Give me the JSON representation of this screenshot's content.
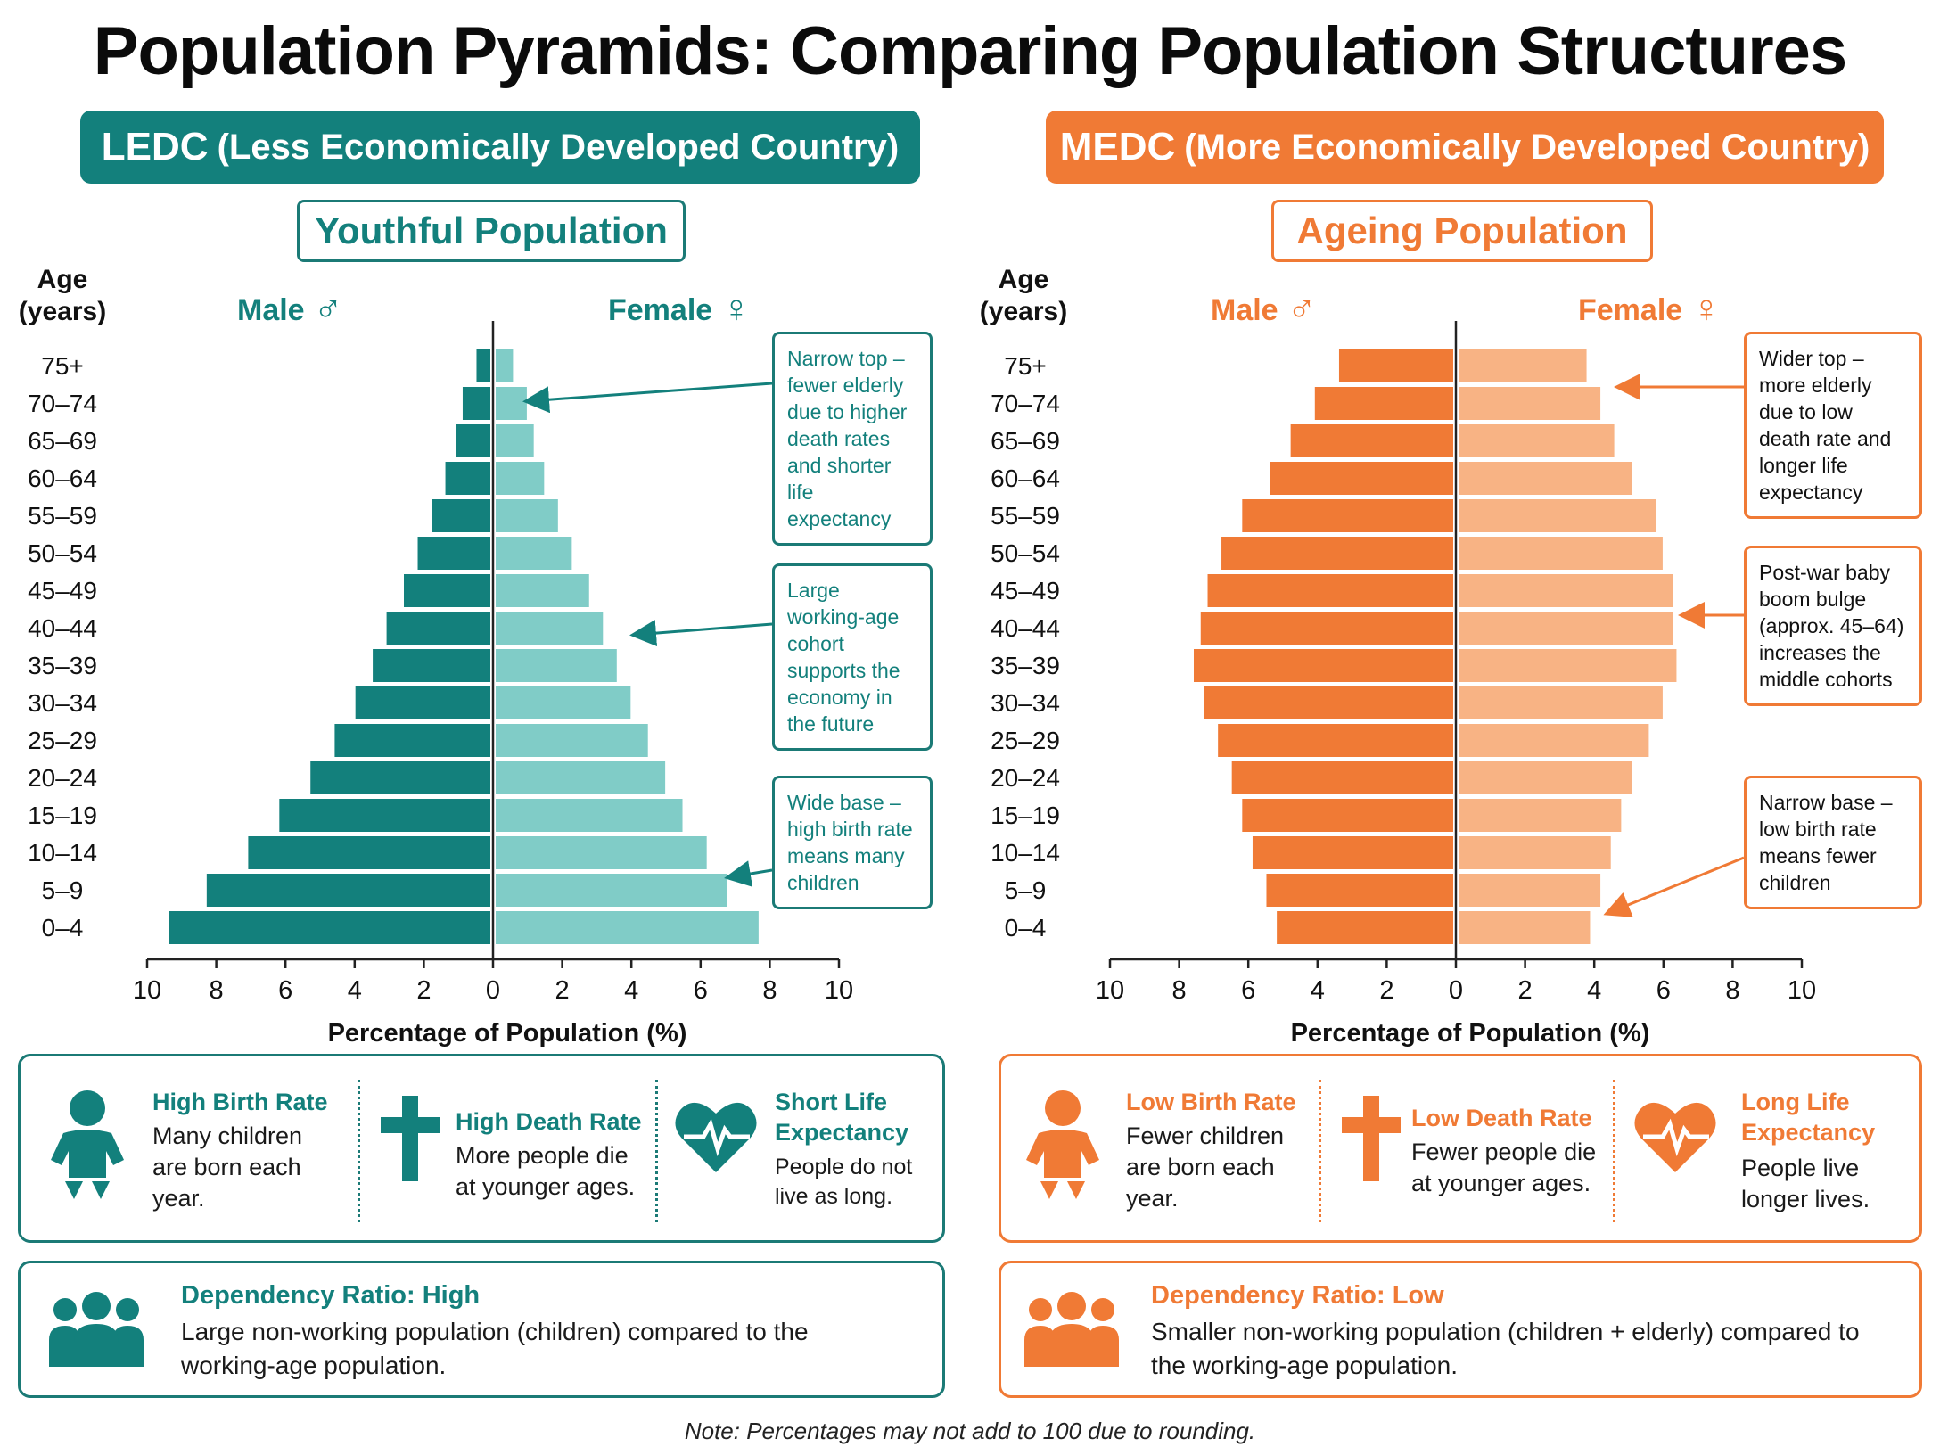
{
  "title": "Population Pyramids: Comparing Population Structures",
  "colors": {
    "teal_dark": "#13807c",
    "teal_light": "#80ccc7",
    "orange_dark": "#f07a35",
    "orange_light": "#f8b384",
    "teal_border": "#1b7a76",
    "orange_border": "#f07a35"
  },
  "ledc": {
    "banner_main": "LEDC",
    "banner_sub": "(Less Economically Developed Country)",
    "subtitle": "Youthful Population",
    "male_label": "Male",
    "female_label": "Female",
    "male_icon": "♂",
    "female_icon": "♀",
    "annotations": [
      {
        "text": "Narrow top – fewer elderly due to higher death rates and shorter life expectancy"
      },
      {
        "text": "Large working-age cohort supports the economy in the future"
      },
      {
        "text": "Wide base – high birth rate means many children"
      }
    ],
    "facts": [
      {
        "icon": "baby-icon",
        "title": "High Birth Rate",
        "text": "Many children are born each year."
      },
      {
        "icon": "cross-icon",
        "title": "High Death Rate",
        "text": "More people die at younger ages."
      },
      {
        "icon": "heart-icon",
        "title": "Short Life Expectancy",
        "text": "People do not live as long."
      }
    ],
    "dependency_title": "Dependency Ratio: High",
    "dependency_text": "Large non-working population (children) compared to the working-age population."
  },
  "medc": {
    "banner_main": "MEDC",
    "banner_sub": "(More Economically Developed Country)",
    "subtitle": "Ageing Population",
    "male_label": "Male",
    "female_label": "Female",
    "male_icon": "♂",
    "female_icon": "♀",
    "annotations": [
      {
        "text": "Wider top – more elderly due to low death rate and longer life expectancy"
      },
      {
        "text": "Post-war baby boom bulge (approx. 45–64) increases the middle cohorts"
      },
      {
        "text": "Narrow base – low birth rate means fewer children"
      }
    ],
    "facts": [
      {
        "icon": "baby-icon",
        "title": "Low Birth Rate",
        "text": "Fewer children are born each year."
      },
      {
        "icon": "cross-icon",
        "title": "Low Death Rate",
        "text": "Fewer people die at younger ages."
      },
      {
        "icon": "heart-icon",
        "title": "Long Life Expectancy",
        "text": "People live longer lives."
      }
    ],
    "dependency_title": "Dependency Ratio: Low",
    "dependency_text": "Smaller non-working population (children + elderly) compared to the working-age population."
  },
  "chart_data": [
    {
      "type": "bar",
      "orientation": "horizontal-pyramid",
      "ylabel": "Age (years)",
      "xlabel": "Percentage of Population (%)",
      "categories": [
        "0–4",
        "5–9",
        "10–14",
        "15–19",
        "20–24",
        "25–29",
        "30–34",
        "35–39",
        "40–44",
        "45–49",
        "50–54",
        "55–59",
        "60–64",
        "65–69",
        "70–74",
        "75+"
      ],
      "xlim": [
        -10,
        10
      ],
      "ticks": [
        10,
        8,
        6,
        4,
        2,
        0,
        2,
        4,
        6,
        8,
        10
      ],
      "series": [
        {
          "name": "Male",
          "values": [
            9.3,
            8.2,
            7.0,
            6.1,
            5.2,
            4.5,
            3.9,
            3.4,
            3.0,
            2.5,
            2.1,
            1.7,
            1.3,
            1.0,
            0.8,
            0.4
          ]
        },
        {
          "name": "Female",
          "values": [
            7.6,
            6.7,
            6.1,
            5.4,
            4.9,
            4.4,
            3.9,
            3.5,
            3.1,
            2.7,
            2.2,
            1.8,
            1.4,
            1.1,
            0.9,
            0.5
          ]
        }
      ]
    },
    {
      "type": "bar",
      "orientation": "horizontal-pyramid",
      "ylabel": "Age (years)",
      "xlabel": "Percentage of Population (%)",
      "categories": [
        "0–4",
        "5–9",
        "10–14",
        "15–19",
        "20–24",
        "25–29",
        "30–34",
        "35–39",
        "40–44",
        "45–49",
        "50–54",
        "55–59",
        "60–64",
        "65–69",
        "70–74",
        "75+"
      ],
      "xlim": [
        -10,
        10
      ],
      "ticks": [
        10,
        8,
        6,
        4,
        2,
        0,
        2,
        4,
        6,
        8,
        10
      ],
      "series": [
        {
          "name": "Male",
          "values": [
            5.1,
            5.4,
            5.8,
            6.1,
            6.4,
            6.8,
            7.2,
            7.5,
            7.3,
            7.1,
            6.7,
            6.1,
            5.3,
            4.7,
            4.0,
            3.3
          ]
        },
        {
          "name": "Female",
          "values": [
            3.8,
            4.1,
            4.4,
            4.7,
            5.0,
            5.5,
            5.9,
            6.3,
            6.2,
            6.2,
            5.9,
            5.7,
            5.0,
            4.5,
            4.1,
            3.7
          ]
        }
      ]
    }
  ],
  "note": "Note: Percentages may not add to 100 due to rounding."
}
